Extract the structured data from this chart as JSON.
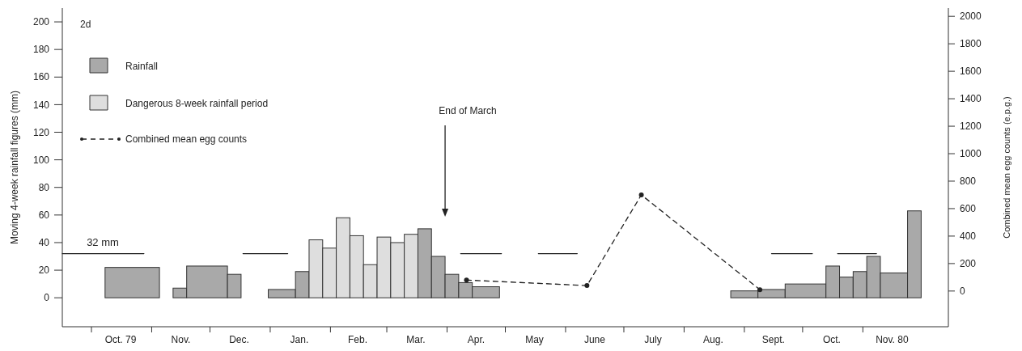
{
  "chart_data": {
    "type": "histogram",
    "ylabel": "Moving 4-week rainfall figures (mm)",
    "y2label": "Combined mean egg counts (e.p.g.)",
    "xlim": [
      "1979-09-16",
      "1980-12-15"
    ],
    "ylim": [
      -21,
      210
    ],
    "y2lim": [
      -260,
      2060
    ],
    "xticks": [
      {
        "value": "1979-10-01",
        "label": null
      },
      {
        "value": "1979-11-01",
        "label": null
      },
      {
        "value": "1979-12-01",
        "label": null
      },
      {
        "value": "1980-01-01",
        "label": null
      },
      {
        "value": "1980-02-01",
        "label": null
      },
      {
        "value": "1980-03-01",
        "label": null
      },
      {
        "value": "1980-04-01",
        "label": null
      },
      {
        "value": "1980-05-01",
        "label": null
      },
      {
        "value": "1980-06-01",
        "label": null
      },
      {
        "value": "1980-07-01",
        "label": null
      },
      {
        "value": "1980-08-01",
        "label": null
      },
      {
        "value": "1980-09-01",
        "label": null
      },
      {
        "value": "1980-10-01",
        "label": null
      },
      {
        "value": "1980-11-01",
        "label": null
      },
      {
        "value": "1979-10-16",
        "label": "Oct. 79"
      },
      {
        "value": "1979-11-16",
        "label": "Nov."
      },
      {
        "value": "1979-12-16",
        "label": "Dec."
      },
      {
        "value": "1980-01-16",
        "label": "Jan."
      },
      {
        "value": "1980-02-15",
        "label": "Feb."
      },
      {
        "value": "1980-03-16",
        "label": "Mar."
      },
      {
        "value": "1980-04-16",
        "label": "Apr."
      },
      {
        "value": "1980-05-16",
        "label": "May"
      },
      {
        "value": "1980-06-16",
        "label": "June"
      },
      {
        "value": "1980-07-16",
        "label": "July"
      },
      {
        "value": "1980-08-16",
        "label": "Aug."
      },
      {
        "value": "1980-09-16",
        "label": "Sept."
      },
      {
        "value": "1980-10-16",
        "label": "Oct."
      },
      {
        "value": "1980-11-16",
        "label": "Nov. 80"
      }
    ],
    "yticks": [
      0,
      20,
      40,
      60,
      80,
      100,
      120,
      140,
      160,
      180,
      200
    ],
    "y2ticks": [
      0,
      200,
      400,
      600,
      800,
      1000,
      1200,
      1400,
      1600,
      1800,
      2000
    ],
    "grid": false,
    "legend": "top left",
    "annotations": [
      "2d"
    ],
    "ref_lines": [
      {
        "axis": "x",
        "value": "1980-03-31",
        "label": "End of March"
      }
    ],
    "series": [
      {
        "name": "Rainfall",
        "color": "#a9a9a9",
        "bins": [
          "1979-10-08",
          "1979-11-05",
          "1979-11-12",
          "1979-11-19",
          "1979-12-10",
          "1979-12-17",
          "1979-12-31",
          "1980-01-14",
          "1980-01-21",
          "1980-03-17",
          "1980-03-24",
          "1980-03-31",
          "1980-04-07",
          "1980-04-14",
          "1980-04-28",
          "1980-08-25",
          "1980-09-08",
          "1980-09-22",
          "1980-10-13",
          "1980-10-20",
          "1980-10-27",
          "1980-11-03",
          "1980-11-10",
          "1980-11-24",
          "1980-12-01"
        ],
        "values": [
          22,
          0,
          7,
          23,
          17,
          0,
          6,
          19,
          null,
          50,
          30,
          17,
          11,
          8,
          null,
          5,
          6,
          10,
          23,
          15,
          19,
          30,
          18,
          63
        ]
      },
      {
        "name": "Dangerous 8-week rainfall period",
        "color": "#dedede",
        "bins": [
          "1980-01-21",
          "1980-01-28",
          "1980-02-04",
          "1980-02-11",
          "1980-02-18",
          "1980-02-25",
          "1980-03-03",
          "1980-03-10",
          "1980-03-17"
        ],
        "values": [
          42,
          36,
          58,
          45,
          24,
          44,
          40,
          46
        ]
      },
      {
        "type": "line",
        "name": "Combined mean egg counts",
        "color": "#222222",
        "axis": "y2",
        "marker": "circle",
        "line_style": "dashed",
        "x": [
          "1980-04-11",
          "1980-06-12",
          "1980-07-10",
          "1980-09-09"
        ],
        "values": [
          80,
          40,
          700,
          10
        ]
      },
      {
        "type": "line",
        "name": "32 mm",
        "color": "#222222",
        "marker": "none",
        "line_style": "solid",
        "x": [
          "1979-09-16",
          "1979-10-28",
          "1979-11-19",
          "1979-12-18",
          "1980-01-10",
          "1980-02-18",
          "1980-04-08",
          "1980-04-29",
          "1980-05-05",
          "1980-05-18",
          "1980-06-07",
          "1980-07-21",
          "1980-09-15",
          "1980-10-06",
          "1980-10-13",
          "1980-10-19",
          "1980-11-08"
        ],
        "values": [
          32,
          32,
          null,
          32,
          32,
          null,
          32,
          32,
          null,
          32,
          32,
          null,
          32,
          32,
          null,
          32,
          32
        ]
      }
    ]
  }
}
